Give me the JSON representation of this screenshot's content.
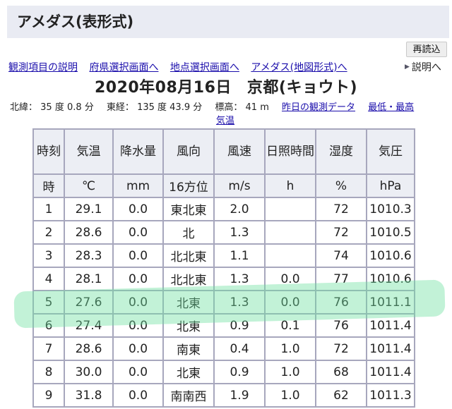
{
  "page_title": "アメダス(表形式)",
  "reload_label": "再読込",
  "explain_label": "説明へ",
  "nav_links": [
    "観測項目の説明",
    "府県選択画面へ",
    "地点選択画面へ",
    "アメダス(地図形式)へ"
  ],
  "heading": {
    "date": "2020年08月16日",
    "station": "京都(キョウト)"
  },
  "station_info": {
    "lat_label": "北緯：",
    "lat_value": "35 度 0.8 分",
    "lon_label": "東経：",
    "lon_value": "135 度 43.9 分",
    "alt_label": "標高：",
    "alt_value": "41 m",
    "link_yesterday": "昨日の観測データ",
    "link_extremes_a": "最低・最高",
    "link_extremes_b": "気温"
  },
  "table": {
    "headers": [
      "時刻",
      "気温",
      "降水量",
      "風向",
      "風速",
      "日照時間",
      "湿度",
      "気圧"
    ],
    "units": [
      "時",
      "℃",
      "mm",
      "16方位",
      "m/s",
      "h",
      "%",
      "hPa"
    ],
    "rows": [
      [
        "1",
        "29.1",
        "0.0",
        "東北東",
        "2.0",
        "",
        "72",
        "1010.3"
      ],
      [
        "2",
        "28.6",
        "0.0",
        "北",
        "1.3",
        "",
        "72",
        "1010.5"
      ],
      [
        "3",
        "28.3",
        "0.0",
        "北北東",
        "1.1",
        "",
        "74",
        "1010.6"
      ],
      [
        "4",
        "28.1",
        "0.0",
        "北北東",
        "1.3",
        "0.0",
        "77",
        "1010.6"
      ],
      [
        "5",
        "27.6",
        "0.0",
        "北東",
        "1.3",
        "0.0",
        "76",
        "1011.1"
      ],
      [
        "6",
        "27.4",
        "0.0",
        "北東",
        "0.9",
        "0.1",
        "76",
        "1011.4"
      ],
      [
        "7",
        "28.6",
        "0.0",
        "南東",
        "0.4",
        "1.0",
        "72",
        "1011.4"
      ],
      [
        "8",
        "30.0",
        "0.0",
        "北東",
        "0.9",
        "1.0",
        "68",
        "1011.4"
      ],
      [
        "9",
        "31.8",
        "0.0",
        "南南西",
        "1.9",
        "1.0",
        "62",
        "1011.3"
      ]
    ]
  },
  "highlight_row": 5,
  "colors": {
    "link": "#1a0dab",
    "header_bg": "#e9ebf3",
    "table_border": "#a7a7bd",
    "highlight": "#6ee1a0"
  }
}
